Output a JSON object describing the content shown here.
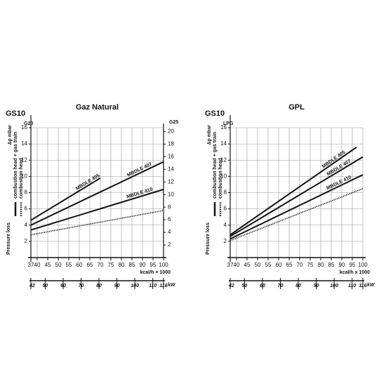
{
  "chart_data": [
    {
      "type": "line",
      "model": "GS10",
      "title": "Gaz Natural",
      "y_axis_name": "G20",
      "y2_axis_name": "G25",
      "ylabel": "∆p mbar",
      "xlabel": "kcal/h × 1000",
      "x2label": "kW",
      "xlim": [
        37,
        100
      ],
      "xticks": [
        37,
        40,
        45,
        50,
        55,
        60,
        65,
        70,
        75,
        80,
        85,
        90,
        95,
        100
      ],
      "x2lim": [
        42,
        116
      ],
      "x2ticks": [
        42,
        50,
        60,
        70,
        80,
        90,
        100,
        110,
        116
      ],
      "ylim": [
        0,
        16
      ],
      "yticks": [
        2,
        4,
        6,
        8,
        10,
        12,
        14,
        16
      ],
      "y2lim": [
        0,
        20.6
      ],
      "y2ticks": [
        2,
        4,
        6,
        8,
        10,
        12,
        14,
        16,
        18,
        20
      ],
      "grid": true,
      "legend": [
        "Pressure loss",
        "combustion head + gas train",
        "combustion head"
      ],
      "series": [
        {
          "name": "MBDLE 405",
          "color": "#111111",
          "style": "solid",
          "x": [
            37,
            70
          ],
          "values": [
            4.6,
            9.8
          ]
        },
        {
          "name": "MBDLE 407",
          "color": "#111111",
          "style": "solid",
          "x": [
            37,
            100
          ],
          "values": [
            4.0,
            11.8
          ]
        },
        {
          "name": "MBDLE 410",
          "color": "#111111",
          "style": "solid",
          "x": [
            37,
            100
          ],
          "values": [
            3.4,
            8.4
          ]
        },
        {
          "color": "#111111",
          "style": "dotted",
          "x": [
            37,
            100
          ],
          "values": [
            2.8,
            5.8
          ]
        }
      ]
    },
    {
      "type": "line",
      "model": "GS10",
      "title": "GPL",
      "y_axis_name": "LPG",
      "ylabel": "∆p mbar",
      "xlabel": "kcal/h x 1000",
      "x2label": "kW",
      "xlim": [
        37,
        100
      ],
      "xticks": [
        37,
        40,
        45,
        50,
        55,
        60,
        65,
        70,
        75,
        80,
        85,
        90,
        95,
        100
      ],
      "x2lim": [
        42,
        116
      ],
      "x2ticks": [
        42,
        50,
        60,
        70,
        80,
        90,
        100,
        110,
        116
      ],
      "ylim": [
        0,
        16
      ],
      "yticks": [
        2,
        4,
        6,
        8,
        10,
        12,
        14,
        16
      ],
      "grid": true,
      "legend": [
        "Pressure loss",
        "combustion head + gas train",
        "combustion head"
      ],
      "series": [
        {
          "name": "MBDLE 405",
          "color": "#111111",
          "style": "solid",
          "x": [
            37,
            97
          ],
          "values": [
            2.8,
            13.6
          ]
        },
        {
          "name": "MBDLE 407",
          "color": "#111111",
          "style": "solid",
          "x": [
            37,
            100
          ],
          "values": [
            2.6,
            12.4
          ]
        },
        {
          "name": "MBDLE 410",
          "color": "#111111",
          "style": "solid",
          "x": [
            37,
            100
          ],
          "values": [
            2.3,
            10.2
          ]
        },
        {
          "color": "#111111",
          "style": "dotted",
          "x": [
            37,
            100
          ],
          "values": [
            2.1,
            8.5
          ]
        }
      ]
    }
  ]
}
